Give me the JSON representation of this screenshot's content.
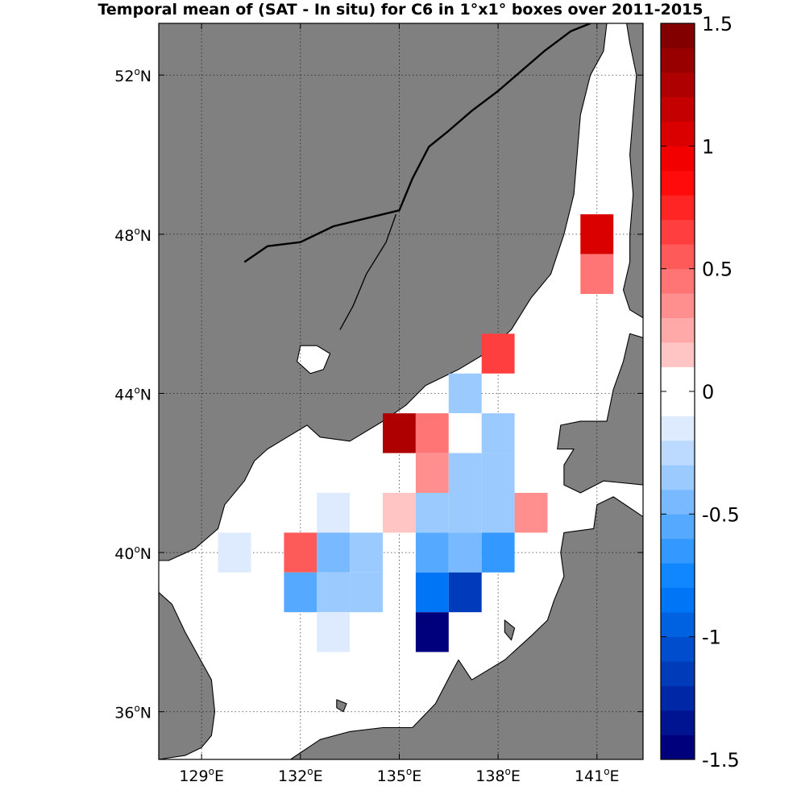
{
  "title": "Temporal mean of (SAT - In situ) for C6 in 1°x1° boxes over 2011-2015",
  "map": {
    "lon_range": [
      127.7,
      142.4
    ],
    "lat_range": [
      34.8,
      53.3
    ],
    "lon_ticks": [
      {
        "value": 129,
        "label_num": "129",
        "label_sup": "o",
        "label_dir": "E"
      },
      {
        "value": 132,
        "label_num": "132",
        "label_sup": "o",
        "label_dir": "E"
      },
      {
        "value": 135,
        "label_num": "135",
        "label_sup": "o",
        "label_dir": "E"
      },
      {
        "value": 138,
        "label_num": "138",
        "label_sup": "o",
        "label_dir": "E"
      },
      {
        "value": 141,
        "label_num": "141",
        "label_sup": "o",
        "label_dir": "E"
      }
    ],
    "lat_ticks": [
      {
        "value": 36,
        "label_num": "36",
        "label_sup": "o",
        "label_dir": "N"
      },
      {
        "value": 40,
        "label_num": "40",
        "label_sup": "o",
        "label_dir": "N"
      },
      {
        "value": 44,
        "label_num": "44",
        "label_sup": "o",
        "label_dir": "N"
      },
      {
        "value": 48,
        "label_num": "48",
        "label_sup": "o",
        "label_dir": "N"
      },
      {
        "value": 52,
        "label_num": "52",
        "label_sup": "o",
        "label_dir": "N"
      }
    ],
    "grid": true,
    "land_color": "#808080",
    "sea_color": "#ffffff"
  },
  "chart_data": {
    "type": "heatmap",
    "title": "Temporal mean of (SAT - In situ) for C6 in 1°x1° boxes over 2011-2015",
    "cell_size_deg": 1,
    "cells": [
      {
        "lon": 141,
        "lat": 48,
        "value": 1.0
      },
      {
        "lon": 141,
        "lat": 47,
        "value": 0.45
      },
      {
        "lon": 138,
        "lat": 45,
        "value": 0.6
      },
      {
        "lon": 137,
        "lat": 44,
        "value": -0.3
      },
      {
        "lon": 135,
        "lat": 43,
        "value": 1.3
      },
      {
        "lon": 136,
        "lat": 43,
        "value": 0.45
      },
      {
        "lon": 137,
        "lat": 43,
        "value": 0.0
      },
      {
        "lon": 138,
        "lat": 43,
        "value": -0.4
      },
      {
        "lon": 136,
        "lat": 42,
        "value": 0.3
      },
      {
        "lon": 137,
        "lat": 42,
        "value": -0.4
      },
      {
        "lon": 138,
        "lat": 42,
        "value": -0.4
      },
      {
        "lon": 133,
        "lat": 41,
        "value": -0.1
      },
      {
        "lon": 135,
        "lat": 41,
        "value": 0.1
      },
      {
        "lon": 136,
        "lat": 41,
        "value": -0.3
      },
      {
        "lon": 137,
        "lat": 41,
        "value": -0.3
      },
      {
        "lon": 138,
        "lat": 41,
        "value": -0.3
      },
      {
        "lon": 139,
        "lat": 41,
        "value": 0.3
      },
      {
        "lon": 130,
        "lat": 40,
        "value": -0.1
      },
      {
        "lon": 132,
        "lat": 40,
        "value": 0.5
      },
      {
        "lon": 133,
        "lat": 40,
        "value": -0.5
      },
      {
        "lon": 134,
        "lat": 40,
        "value": -0.3
      },
      {
        "lon": 136,
        "lat": 40,
        "value": -0.6
      },
      {
        "lon": 137,
        "lat": 40,
        "value": -0.5
      },
      {
        "lon": 138,
        "lat": 40,
        "value": -0.7
      },
      {
        "lon": 132,
        "lat": 39,
        "value": -0.6
      },
      {
        "lon": 133,
        "lat": 39,
        "value": -0.3
      },
      {
        "lon": 134,
        "lat": 39,
        "value": -0.3
      },
      {
        "lon": 136,
        "lat": 39,
        "value": -0.85
      },
      {
        "lon": 137,
        "lat": 39,
        "value": -1.1
      },
      {
        "lon": 133,
        "lat": 38,
        "value": -0.2
      },
      {
        "lon": 136,
        "lat": 38,
        "value": -1.5
      }
    ],
    "colorbar": {
      "min": -1.5,
      "max": 1.5,
      "levels": 30,
      "ticks": [
        {
          "value": 1.5,
          "label": "1.5"
        },
        {
          "value": 1,
          "label": "1"
        },
        {
          "value": 0.5,
          "label": "0.5"
        },
        {
          "value": 0,
          "label": "0"
        },
        {
          "value": -0.5,
          "label": "-0.5"
        },
        {
          "value": -1,
          "label": "-1"
        },
        {
          "value": -1.5,
          "label": "-1.5"
        }
      ]
    }
  }
}
